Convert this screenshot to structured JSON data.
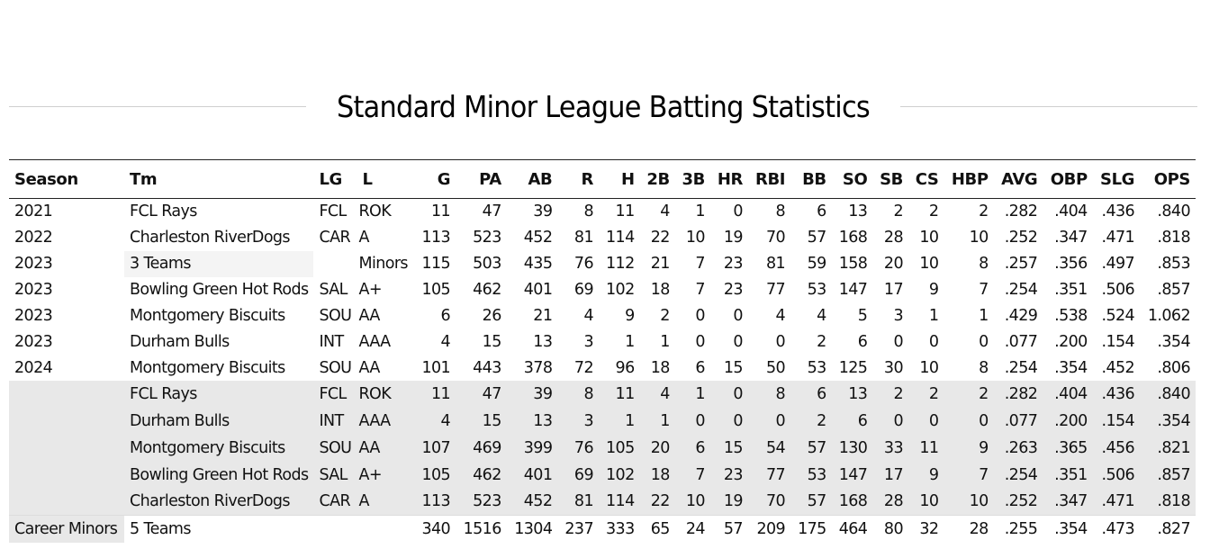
{
  "title": "Standard Minor League Batting Statistics",
  "columns": [
    "Season",
    "Tm",
    "LG",
    "L",
    "G",
    "PA",
    "AB",
    "R",
    "H",
    "2B",
    "3B",
    "HR",
    "RBI",
    "BB",
    "SO",
    "SB",
    "CS",
    "HBP",
    "AVG",
    "OBP",
    "SLG",
    "OPS"
  ],
  "seasons": [
    {
      "season": "2021",
      "tm": "FCL Rays",
      "lg": "FCL",
      "l": "ROK",
      "g": "11",
      "pa": "47",
      "ab": "39",
      "r": "8",
      "h": "11",
      "d": "4",
      "t": "1",
      "hr": "0",
      "rbi": "8",
      "bb": "6",
      "so": "13",
      "sb": "2",
      "cs": "2",
      "hbp": "2",
      "avg": ".282",
      "obp": ".404",
      "slg": ".436",
      "ops": ".840"
    },
    {
      "season": "2022",
      "tm": "Charleston RiverDogs",
      "lg": "CAR",
      "l": "A",
      "g": "113",
      "pa": "523",
      "ab": "452",
      "r": "81",
      "h": "114",
      "d": "22",
      "t": "10",
      "hr": "19",
      "rbi": "70",
      "bb": "57",
      "so": "168",
      "sb": "28",
      "cs": "10",
      "hbp": "10",
      "avg": ".252",
      "obp": ".347",
      "slg": ".471",
      "ops": ".818"
    },
    {
      "season": "2023",
      "tm": "3 Teams",
      "lg": "",
      "l": "Minors",
      "g": "115",
      "pa": "503",
      "ab": "435",
      "r": "76",
      "h": "112",
      "d": "21",
      "t": "7",
      "hr": "23",
      "rbi": "81",
      "bb": "59",
      "so": "158",
      "sb": "20",
      "cs": "10",
      "hbp": "8",
      "avg": ".257",
      "obp": ".356",
      "slg": ".497",
      "ops": ".853"
    },
    {
      "season": "2023",
      "tm": "Bowling Green Hot Rods",
      "lg": "SAL",
      "l": "A+",
      "g": "105",
      "pa": "462",
      "ab": "401",
      "r": "69",
      "h": "102",
      "d": "18",
      "t": "7",
      "hr": "23",
      "rbi": "77",
      "bb": "53",
      "so": "147",
      "sb": "17",
      "cs": "9",
      "hbp": "7",
      "avg": ".254",
      "obp": ".351",
      "slg": ".506",
      "ops": ".857"
    },
    {
      "season": "2023",
      "tm": "Montgomery Biscuits",
      "lg": "SOU",
      "l": "AA",
      "g": "6",
      "pa": "26",
      "ab": "21",
      "r": "4",
      "h": "9",
      "d": "2",
      "t": "0",
      "hr": "0",
      "rbi": "4",
      "bb": "4",
      "so": "5",
      "sb": "3",
      "cs": "1",
      "hbp": "1",
      "avg": ".429",
      "obp": ".538",
      "slg": ".524",
      "ops": "1.062"
    },
    {
      "season": "2023",
      "tm": "Durham Bulls",
      "lg": "INT",
      "l": "AAA",
      "g": "4",
      "pa": "15",
      "ab": "13",
      "r": "3",
      "h": "1",
      "d": "1",
      "t": "0",
      "hr": "0",
      "rbi": "0",
      "bb": "2",
      "so": "6",
      "sb": "0",
      "cs": "0",
      "hbp": "0",
      "avg": ".077",
      "obp": ".200",
      "slg": ".154",
      "ops": ".354"
    },
    {
      "season": "2024",
      "tm": "Montgomery Biscuits",
      "lg": "SOU",
      "l": "AA",
      "g": "101",
      "pa": "443",
      "ab": "378",
      "r": "72",
      "h": "96",
      "d": "18",
      "t": "6",
      "hr": "15",
      "rbi": "50",
      "bb": "53",
      "so": "125",
      "sb": "30",
      "cs": "10",
      "hbp": "8",
      "avg": ".254",
      "obp": ".354",
      "slg": ".452",
      "ops": ".806"
    }
  ],
  "team_splits": [
    {
      "tm": "FCL Rays",
      "lg": "FCL",
      "l": "ROK",
      "g": "11",
      "pa": "47",
      "ab": "39",
      "r": "8",
      "h": "11",
      "d": "4",
      "t": "1",
      "hr": "0",
      "rbi": "8",
      "bb": "6",
      "so": "13",
      "sb": "2",
      "cs": "2",
      "hbp": "2",
      "avg": ".282",
      "obp": ".404",
      "slg": ".436",
      "ops": ".840"
    },
    {
      "tm": "Durham Bulls",
      "lg": "INT",
      "l": "AAA",
      "g": "4",
      "pa": "15",
      "ab": "13",
      "r": "3",
      "h": "1",
      "d": "1",
      "t": "0",
      "hr": "0",
      "rbi": "0",
      "bb": "2",
      "so": "6",
      "sb": "0",
      "cs": "0",
      "hbp": "0",
      "avg": ".077",
      "obp": ".200",
      "slg": ".154",
      "ops": ".354"
    },
    {
      "tm": "Montgomery Biscuits",
      "lg": "SOU",
      "l": "AA",
      "g": "107",
      "pa": "469",
      "ab": "399",
      "r": "76",
      "h": "105",
      "d": "20",
      "t": "6",
      "hr": "15",
      "rbi": "54",
      "bb": "57",
      "so": "130",
      "sb": "33",
      "cs": "11",
      "hbp": "9",
      "avg": ".263",
      "obp": ".365",
      "slg": ".456",
      "ops": ".821"
    },
    {
      "tm": "Bowling Green Hot Rods",
      "lg": "SAL",
      "l": "A+",
      "g": "105",
      "pa": "462",
      "ab": "401",
      "r": "69",
      "h": "102",
      "d": "18",
      "t": "7",
      "hr": "23",
      "rbi": "77",
      "bb": "53",
      "so": "147",
      "sb": "17",
      "cs": "9",
      "hbp": "7",
      "avg": ".254",
      "obp": ".351",
      "slg": ".506",
      "ops": ".857"
    },
    {
      "tm": "Charleston RiverDogs",
      "lg": "CAR",
      "l": "A",
      "g": "113",
      "pa": "523",
      "ab": "452",
      "r": "81",
      "h": "114",
      "d": "22",
      "t": "10",
      "hr": "19",
      "rbi": "70",
      "bb": "57",
      "so": "168",
      "sb": "28",
      "cs": "10",
      "hbp": "10",
      "avg": ".252",
      "obp": ".347",
      "slg": ".471",
      "ops": ".818"
    }
  ],
  "career": {
    "season": "Career Minors",
    "tm": "5 Teams",
    "lg": "",
    "l": "",
    "g": "340",
    "pa": "1516",
    "ab": "1304",
    "r": "237",
    "h": "333",
    "d": "65",
    "t": "24",
    "hr": "57",
    "rbi": "209",
    "bb": "175",
    "so": "464",
    "sb": "80",
    "cs": "32",
    "hbp": "28",
    "avg": ".255",
    "obp": ".354",
    "slg": ".473",
    "ops": ".827"
  }
}
